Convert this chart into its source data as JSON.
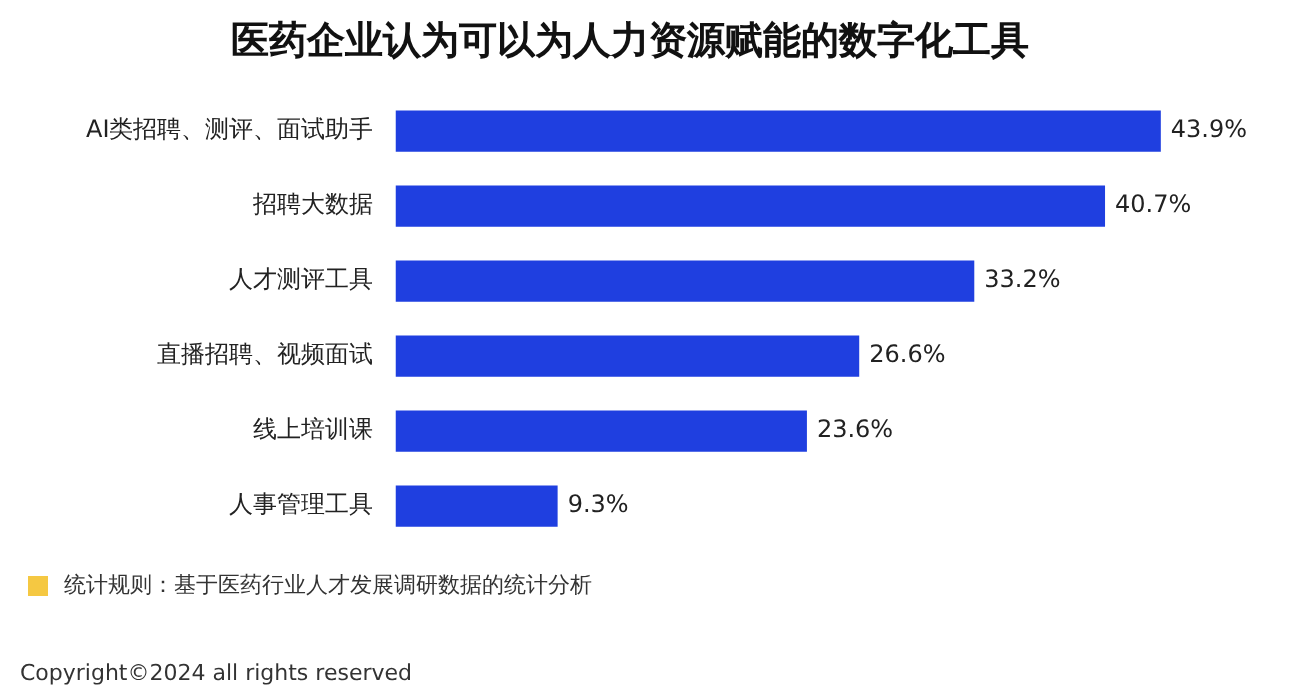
{
  "chart_data": {
    "type": "bar",
    "orientation": "horizontal",
    "title": "医药企业认为可以为人力资源赋能的数字化工具",
    "categories": [
      "AI类招聘、测评、面试助手",
      "招聘大数据",
      "人才测评工具",
      "直播招聘、视频面试",
      "线上培训课",
      "人事管理工具"
    ],
    "values": [
      43.9,
      40.7,
      33.2,
      26.6,
      23.6,
      9.3
    ],
    "value_labels": [
      "43.9%",
      "40.7%",
      "33.2%",
      "26.6%",
      "23.6%",
      "9.3%"
    ],
    "color": "#1f3fe0",
    "legend": false,
    "tick_labels": "y",
    "annotations": [
      "统计规则：基于医药行业人才发展调研数据的统计分析",
      "Copyright©2024 all rights reserved"
    ]
  }
}
